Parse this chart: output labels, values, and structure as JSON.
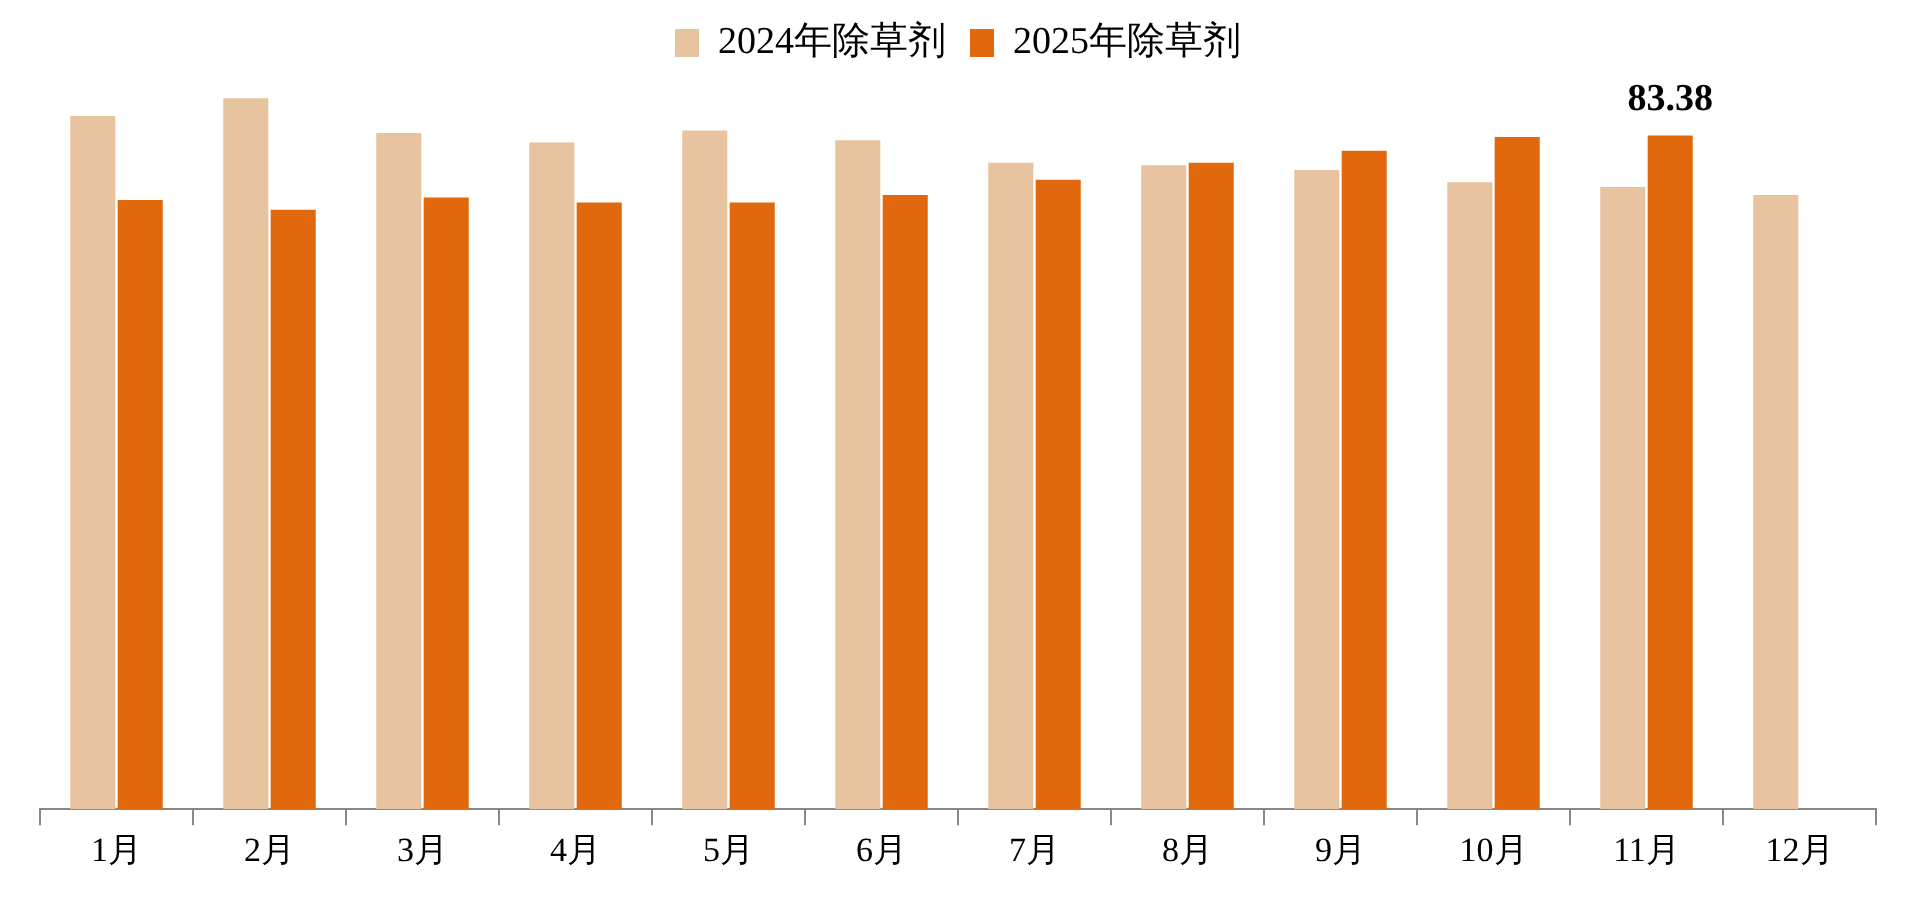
{
  "chart_data": {
    "type": "bar",
    "categories": [
      "1月",
      "2月",
      "3月",
      "4月",
      "5月",
      "6月",
      "7月",
      "8月",
      "9月",
      "10月",
      "11月",
      "12月"
    ],
    "series": [
      {
        "name": "2024年除草剂",
        "color": "#e8c3a0",
        "values": [
          85.8,
          88.0,
          83.7,
          82.5,
          84.0,
          82.8,
          80.0,
          79.7,
          79.1,
          77.6,
          77.0,
          76.0
        ]
      },
      {
        "name": "2025年除草剂",
        "color": "#e2680e",
        "values": [
          75.4,
          74.2,
          75.7,
          75.1,
          75.1,
          76.0,
          77.9,
          80.0,
          81.5,
          83.2,
          83.38,
          null
        ],
        "value_labels": [
          null,
          null,
          null,
          null,
          null,
          null,
          null,
          null,
          null,
          null,
          "83.38",
          null
        ]
      }
    ],
    "legend": "top",
    "tick_labels": "x"
  }
}
